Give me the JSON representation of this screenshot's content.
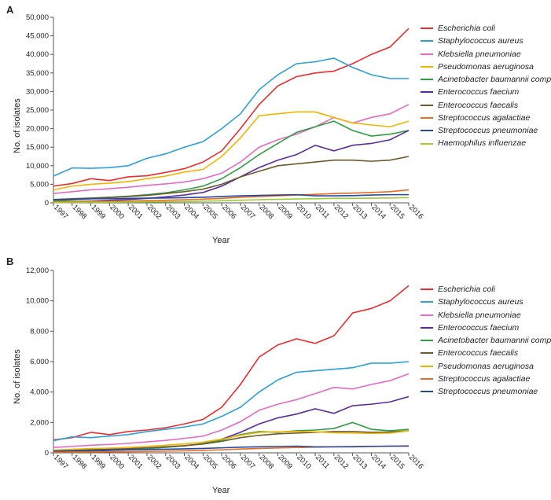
{
  "global": {
    "background_color": "#ffffff",
    "axis_color": "#555555",
    "tick_font_size": 9.5,
    "label_font_size": 11,
    "panel_label_font_size": 13,
    "legend_font_size": 10.5,
    "legend_font_style": "italic",
    "line_width": 1.6,
    "font_family": "Arial"
  },
  "colors": {
    "Escherichia coli": "#ef2b2b",
    "Staphylococcus aureus": "#2aa0df",
    "Klebsiella pneumoniae": "#e76bc0",
    "Pseudomonas aeruginosa": "#f2b400",
    "Acinetobacter baumannii complex": "#2f9e44",
    "Enterococcus faecium": "#5a2ca0",
    "Enterococcus faecalis": "#6b5a2a",
    "Streptococcus agalactiae": "#f26a1b",
    "Streptococcus pneumoniae": "#1f4aa8",
    "Haemophilus influenzae": "#9acd32"
  },
  "panelA": {
    "label": "A",
    "type": "line",
    "x_label": "Year",
    "y_label": "No. of isolates",
    "x_values": [
      1997,
      1998,
      1999,
      2000,
      2001,
      2002,
      2003,
      2004,
      2005,
      2006,
      2007,
      2008,
      2009,
      2010,
      2011,
      2012,
      2013,
      2014,
      2015,
      2016
    ],
    "ylim": [
      0,
      50000
    ],
    "ytick_step": 5000,
    "y_tick_format": "comma",
    "x_tick_rotation": 45,
    "legend_order": [
      "Escherichia coli",
      "Staphylococcus aureus",
      "Klebsiella pneumoniae",
      "Pseudomonas aeruginosa",
      "Acinetobacter baumannii complex",
      "Enterococcus faecium",
      "Enterococcus faecalis",
      "Streptococcus agalactiae",
      "Streptococcus pneumoniae",
      "Haemophilus influenzae"
    ],
    "series": {
      "Escherichia coli": [
        4500,
        5200,
        6500,
        6000,
        7000,
        7300,
        8200,
        9200,
        11000,
        14000,
        20000,
        26500,
        31500,
        34000,
        35000,
        35500,
        37500,
        40000,
        42000,
        47000
      ],
      "Staphylococcus aureus": [
        7200,
        9400,
        9300,
        9500,
        10000,
        12000,
        13200,
        15000,
        16500,
        20000,
        24000,
        30500,
        34500,
        37500,
        38000,
        39000,
        36500,
        34500,
        33500,
        33500
      ],
      "Klebsiella pneumoniae": [
        2500,
        3000,
        3500,
        3800,
        4200,
        4700,
        5100,
        5600,
        6500,
        8000,
        11000,
        15000,
        17000,
        18500,
        20500,
        23000,
        21500,
        23000,
        24000,
        26500
      ],
      "Pseudomonas aeruginosa": [
        3500,
        4500,
        5000,
        5300,
        5700,
        6500,
        7200,
        8300,
        9000,
        12500,
        17500,
        23500,
        24000,
        24500,
        24500,
        23000,
        21500,
        21000,
        20500,
        22000
      ],
      "Acinetobacter baumannii complex": [
        500,
        800,
        1100,
        1500,
        1800,
        2200,
        2700,
        3500,
        4500,
        6500,
        9500,
        13000,
        16000,
        19000,
        20500,
        22000,
        19500,
        18000,
        18500,
        19500
      ],
      "Enterococcus faecium": [
        200,
        300,
        500,
        700,
        900,
        1200,
        1600,
        2100,
        2800,
        4500,
        7000,
        9500,
        11500,
        13000,
        15500,
        14000,
        15500,
        16000,
        17000,
        19500
      ],
      "Enterococcus faecalis": [
        900,
        1100,
        1300,
        1500,
        1700,
        2000,
        2500,
        3000,
        3700,
        5000,
        7000,
        8500,
        10000,
        10500,
        11000,
        11500,
        11500,
        11200,
        11500,
        12500
      ],
      "Streptococcus agalactiae": [
        300,
        350,
        400,
        450,
        500,
        600,
        700,
        850,
        1000,
        1200,
        1500,
        1700,
        1900,
        2100,
        2300,
        2500,
        2600,
        2800,
        3000,
        3500
      ],
      "Streptococcus pneumoniae": [
        800,
        950,
        1100,
        1150,
        1200,
        1250,
        1300,
        1400,
        1500,
        1700,
        1900,
        2000,
        2100,
        2200,
        1900,
        1900,
        1950,
        2100,
        2200,
        2200
      ],
      "Haemophilus influenzae": [
        100,
        120,
        140,
        160,
        200,
        250,
        300,
        380,
        450,
        550,
        700,
        850,
        950,
        1050,
        1100,
        1200,
        1200,
        1250,
        1300,
        1400
      ]
    }
  },
  "panelB": {
    "label": "B",
    "type": "line",
    "x_label": "Year",
    "y_label": "No. of isolates",
    "x_values": [
      1997,
      1998,
      1999,
      2000,
      2001,
      2002,
      2003,
      2004,
      2005,
      2006,
      2007,
      2008,
      2009,
      2010,
      2011,
      2012,
      2013,
      2014,
      2015,
      2016
    ],
    "ylim": [
      0,
      12000
    ],
    "ytick_step": 2000,
    "y_tick_format": "comma",
    "x_tick_rotation": 45,
    "legend_order": [
      "Escherichia coli",
      "Staphylococcus aureus",
      "Klebsiella pneumoniae",
      "Enterococcus faecium",
      "Acinetobacter baumannii complex",
      "Enterococcus faecalis",
      "Pseudomonas aeruginosa",
      "Streptococcus agalactiae",
      "Streptococcus pneumoniae"
    ],
    "series": {
      "Escherichia coli": [
        850,
        1000,
        1350,
        1200,
        1400,
        1500,
        1650,
        1900,
        2200,
        3000,
        4500,
        6300,
        7100,
        7500,
        7200,
        7700,
        9200,
        9500,
        10000,
        11000
      ],
      "Staphylococcus aureus": [
        800,
        1050,
        1000,
        1100,
        1200,
        1400,
        1550,
        1700,
        1900,
        2400,
        3000,
        4000,
        4800,
        5300,
        5400,
        5500,
        5600,
        5900,
        5900,
        6000
      ],
      "Klebsiella pneumoniae": [
        350,
        420,
        500,
        550,
        620,
        720,
        820,
        950,
        1100,
        1500,
        2050,
        2800,
        3200,
        3500,
        3900,
        4300,
        4200,
        4500,
        4750,
        5200
      ],
      "Enterococcus faecium": [
        70,
        90,
        120,
        160,
        200,
        280,
        370,
        470,
        600,
        900,
        1350,
        1900,
        2300,
        2550,
        2900,
        2600,
        3100,
        3200,
        3350,
        3700
      ],
      "Acinetobacter baumannii complex": [
        80,
        110,
        140,
        180,
        230,
        290,
        360,
        460,
        600,
        850,
        1200,
        1400,
        1350,
        1450,
        1500,
        1600,
        2000,
        1550,
        1450,
        1550
      ],
      "Enterococcus faecalis": [
        150,
        180,
        210,
        240,
        280,
        330,
        400,
        470,
        580,
        760,
        1000,
        1150,
        1250,
        1300,
        1350,
        1400,
        1400,
        1350,
        1370,
        1450
      ],
      "Pseudomonas aeruginosa": [
        180,
        230,
        280,
        310,
        350,
        420,
        500,
        590,
        700,
        900,
        1150,
        1350,
        1380,
        1400,
        1380,
        1320,
        1300,
        1280,
        1300,
        1450
      ],
      "Streptococcus agalactiae": [
        40,
        48,
        56,
        65,
        75,
        90,
        110,
        135,
        165,
        200,
        250,
        290,
        320,
        350,
        380,
        400,
        410,
        430,
        440,
        460
      ],
      "Streptococcus pneumoniae": [
        120,
        140,
        165,
        180,
        195,
        215,
        235,
        260,
        290,
        330,
        370,
        400,
        420,
        440,
        390,
        395,
        400,
        420,
        440,
        440
      ]
    }
  }
}
